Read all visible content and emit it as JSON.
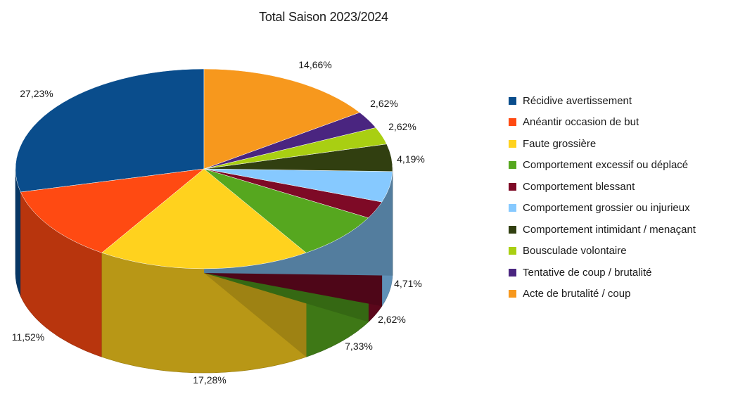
{
  "chart_data": {
    "type": "pie",
    "title": "Total Saison 2023/2024",
    "legend_position": "right",
    "slices": [
      {
        "label": "Récidive avertissement",
        "value": 27.23,
        "display": "27,23%",
        "color": "#0a4d8c"
      },
      {
        "label": "Anéantir occasion de but",
        "value": 11.52,
        "display": "11,52%",
        "color": "#ff4a12"
      },
      {
        "label": "Faute grossière",
        "value": 17.28,
        "display": "17,28%",
        "color": "#ffd21e"
      },
      {
        "label": "Comportement excessif ou déplacé",
        "value": 7.33,
        "display": "7,33%",
        "color": "#56a71f"
      },
      {
        "label": "Comportement blessant",
        "value": 2.62,
        "display": "2,62%",
        "color": "#7e0a26"
      },
      {
        "label": "Comportement grossier ou injurieux",
        "value": 4.71,
        "display": "4,71%",
        "color": "#86c9ff"
      },
      {
        "label": "Comportement intimidant / menaçant",
        "value": 4.19,
        "display": "4,19%",
        "color": "#313f10"
      },
      {
        "label": "Bousculade volontaire",
        "value": 2.62,
        "display": "2,62%",
        "color": "#a9cf12"
      },
      {
        "label": "Tentative de coup / brutalité",
        "value": 2.62,
        "display": "2,62%",
        "color": "#4a2580"
      },
      {
        "label": "Acte de brutalité / coup",
        "value": 14.66,
        "display": "14,66%",
        "color": "#f7981d"
      }
    ]
  }
}
